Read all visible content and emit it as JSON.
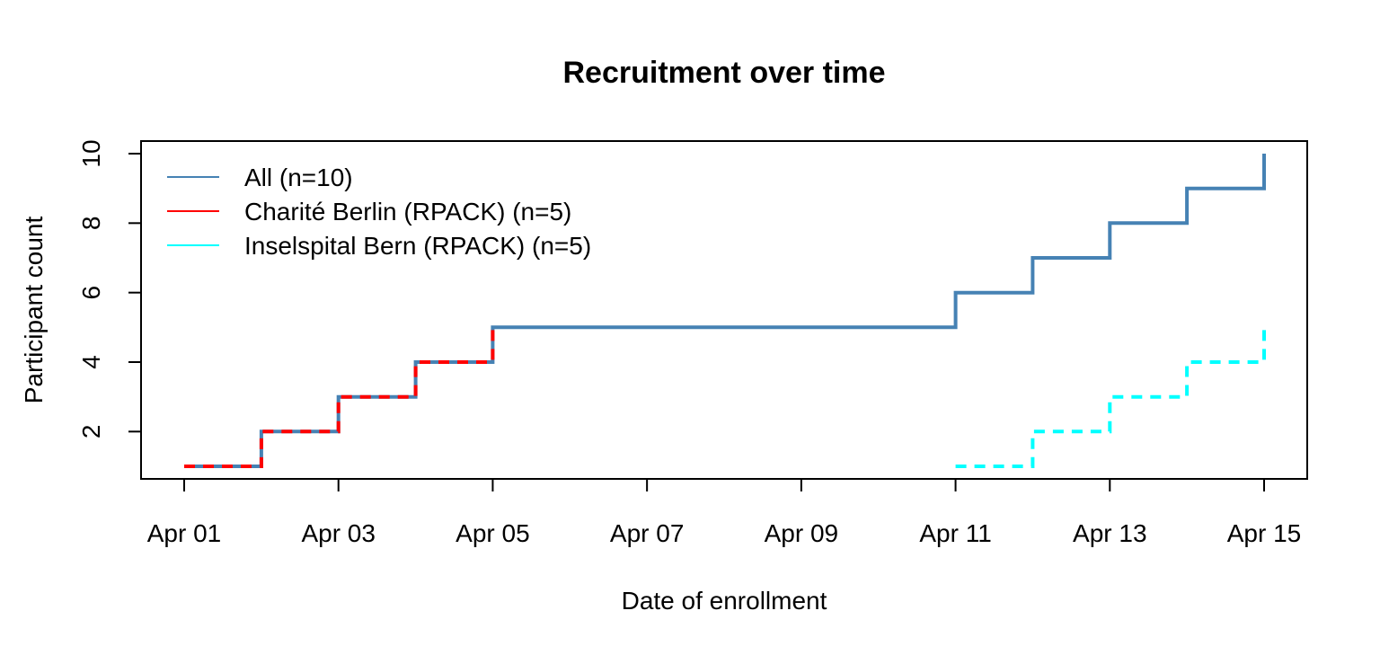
{
  "chart_data": {
    "type": "line",
    "title": "Recruitment over time",
    "xlabel": "Date of enrollment",
    "ylabel": "Participant count",
    "x_tick_labels": [
      "Apr 01",
      "Apr 03",
      "Apr 05",
      "Apr 07",
      "Apr 09",
      "Apr 11",
      "Apr 13",
      "Apr 15"
    ],
    "x_ticks": [
      "2021-04-01",
      "2021-04-03",
      "2021-04-05",
      "2021-04-07",
      "2021-04-09",
      "2021-04-11",
      "2021-04-13",
      "2021-04-15"
    ],
    "y_ticks": [
      2,
      4,
      6,
      8,
      10
    ],
    "xlim": [
      "2021-03-31",
      "2021-04-16"
    ],
    "ylim": [
      1,
      10
    ],
    "grid": false,
    "legend_position": "top-left",
    "step": true,
    "series": [
      {
        "name": "All (n=10)",
        "color": "#4682B4",
        "line_style": "solid",
        "x": [
          "2021-04-01",
          "2021-04-02",
          "2021-04-03",
          "2021-04-04",
          "2021-04-05",
          "2021-04-11",
          "2021-04-12",
          "2021-04-13",
          "2021-04-14",
          "2021-04-15"
        ],
        "y": [
          1,
          2,
          3,
          4,
          5,
          6,
          7,
          8,
          9,
          10
        ]
      },
      {
        "name": "Charité Berlin (RPACK) (n=5)",
        "color": "#FF0000",
        "line_style": "dashed",
        "x": [
          "2021-04-01",
          "2021-04-02",
          "2021-04-03",
          "2021-04-04",
          "2021-04-05"
        ],
        "y": [
          1,
          2,
          3,
          4,
          5
        ]
      },
      {
        "name": "Inselspital Bern (RPACK) (n=5)",
        "color": "#00FFFF",
        "line_style": "dashed",
        "x": [
          "2021-04-11",
          "2021-04-12",
          "2021-04-13",
          "2021-04-14",
          "2021-04-15"
        ],
        "y": [
          1,
          2,
          3,
          4,
          5
        ]
      }
    ]
  }
}
